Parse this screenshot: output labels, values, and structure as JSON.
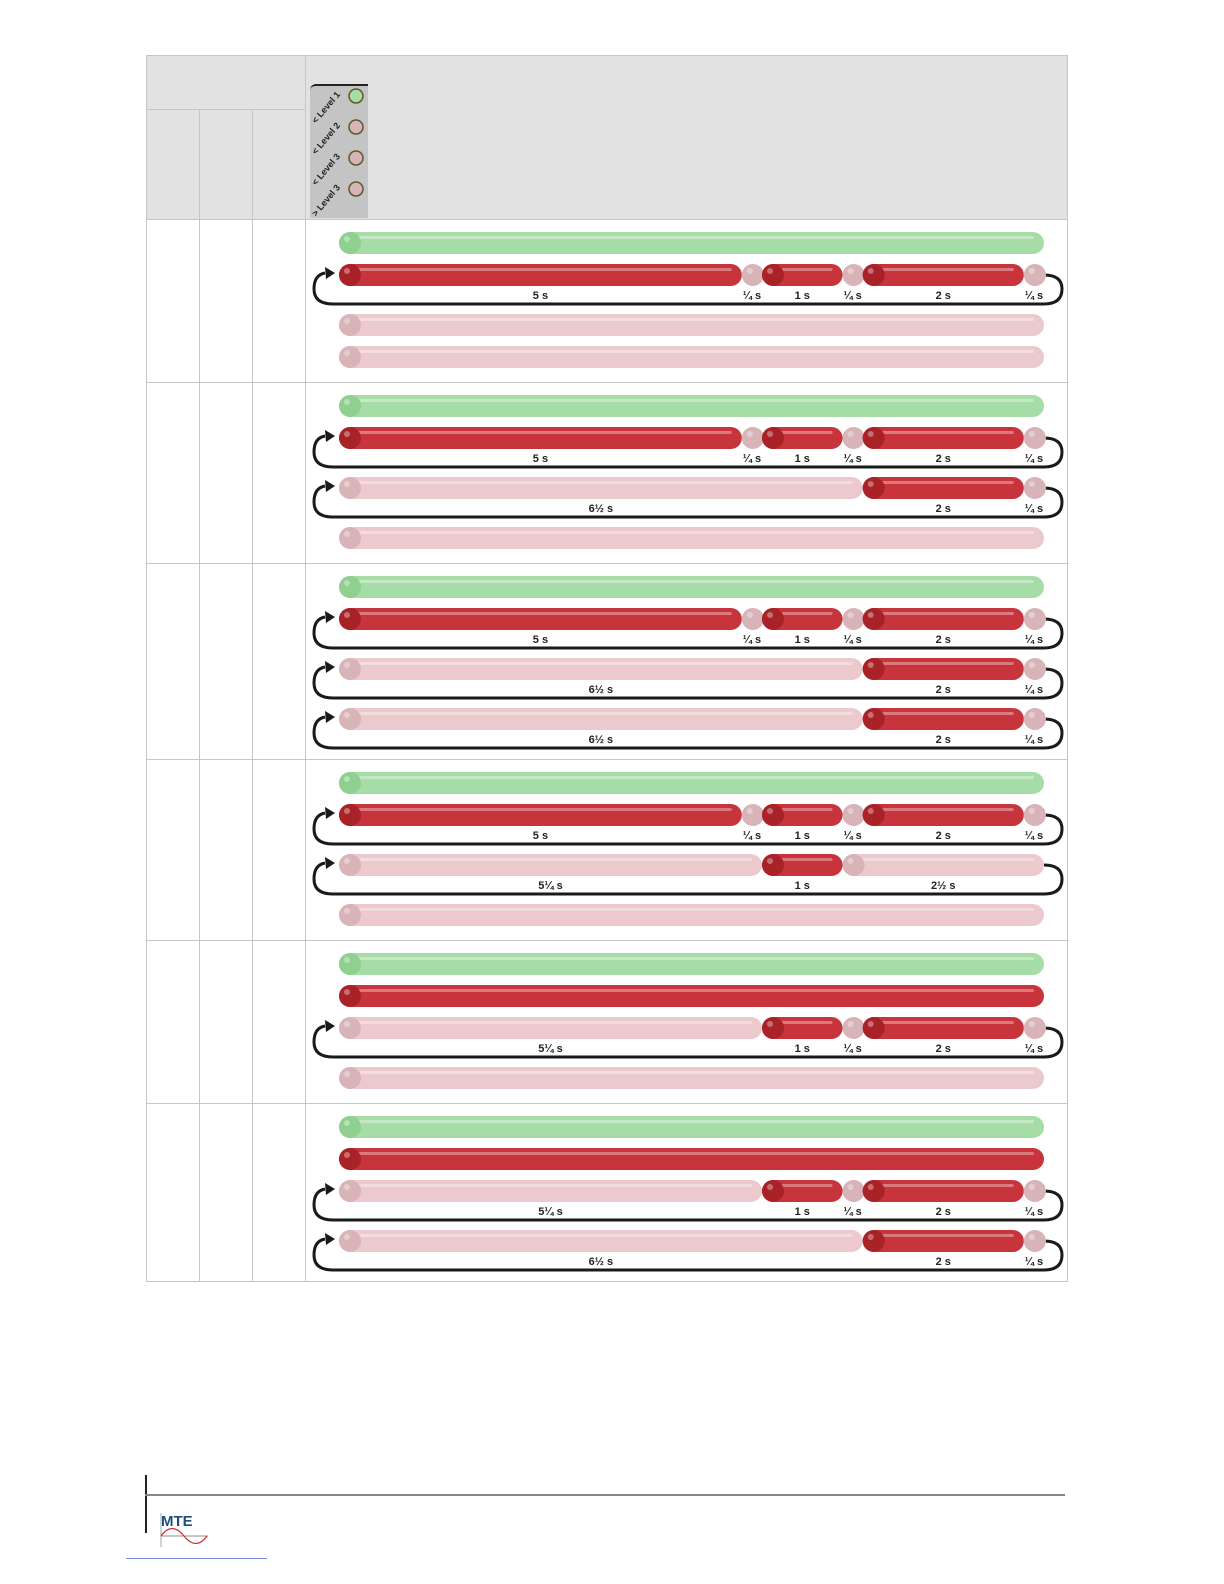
{
  "colors": {
    "green": "#a6dca6",
    "green_ball": "#8fcf8f",
    "red": "#c7343b",
    "red_ball": "#a82228",
    "pink": "#ecc9cc",
    "pink_ball": "#d8b4b8",
    "arrow": "#1a1a1a"
  },
  "led_panel": {
    "labels": [
      "< Level 1",
      "< Level 2",
      "< Level 3",
      "> Level 3"
    ],
    "states": [
      "green",
      "off",
      "off",
      "off"
    ]
  },
  "rows": [
    {
      "tracks": [
        {
          "loop": false,
          "segments": [
            {
              "state": "green",
              "duration": 8.75
            }
          ]
        },
        {
          "loop": true,
          "segments": [
            {
              "state": "on",
              "duration": 5,
              "label": "5 s"
            },
            {
              "state": "off",
              "duration": 0.25,
              "label": "¼ s"
            },
            {
              "state": "on",
              "duration": 1,
              "label": "1 s"
            },
            {
              "state": "off",
              "duration": 0.25,
              "label": "¼ s"
            },
            {
              "state": "on",
              "duration": 2,
              "label": "2 s"
            },
            {
              "state": "off",
              "duration": 0.25,
              "label": "¼ s"
            }
          ]
        },
        {
          "loop": false,
          "segments": [
            {
              "state": "off",
              "duration": 8.75
            }
          ]
        },
        {
          "loop": false,
          "segments": [
            {
              "state": "off",
              "duration": 8.75
            }
          ]
        }
      ]
    },
    {
      "tracks": [
        {
          "loop": false,
          "segments": [
            {
              "state": "green",
              "duration": 8.75
            }
          ]
        },
        {
          "loop": true,
          "segments": [
            {
              "state": "on",
              "duration": 5,
              "label": "5 s"
            },
            {
              "state": "off",
              "duration": 0.25,
              "label": "¼ s"
            },
            {
              "state": "on",
              "duration": 1,
              "label": "1 s"
            },
            {
              "state": "off",
              "duration": 0.25,
              "label": "¼ s"
            },
            {
              "state": "on",
              "duration": 2,
              "label": "2 s"
            },
            {
              "state": "off",
              "duration": 0.25,
              "label": "¼ s"
            }
          ]
        },
        {
          "loop": true,
          "segments": [
            {
              "state": "off",
              "duration": 6.5,
              "label": "6½ s"
            },
            {
              "state": "on",
              "duration": 2,
              "label": "2 s"
            },
            {
              "state": "off",
              "duration": 0.25,
              "label": "¼ s"
            }
          ]
        },
        {
          "loop": false,
          "segments": [
            {
              "state": "off",
              "duration": 8.75
            }
          ]
        }
      ]
    },
    {
      "tracks": [
        {
          "loop": false,
          "segments": [
            {
              "state": "green",
              "duration": 8.75
            }
          ]
        },
        {
          "loop": true,
          "segments": [
            {
              "state": "on",
              "duration": 5,
              "label": "5 s"
            },
            {
              "state": "off",
              "duration": 0.25,
              "label": "¼ s"
            },
            {
              "state": "on",
              "duration": 1,
              "label": "1 s"
            },
            {
              "state": "off",
              "duration": 0.25,
              "label": "¼ s"
            },
            {
              "state": "on",
              "duration": 2,
              "label": "2 s"
            },
            {
              "state": "off",
              "duration": 0.25,
              "label": "¼ s"
            }
          ]
        },
        {
          "loop": true,
          "segments": [
            {
              "state": "off",
              "duration": 6.5,
              "label": "6½ s"
            },
            {
              "state": "on",
              "duration": 2,
              "label": "2 s"
            },
            {
              "state": "off",
              "duration": 0.25,
              "label": "¼ s"
            }
          ]
        },
        {
          "loop": true,
          "segments": [
            {
              "state": "off",
              "duration": 6.5,
              "label": "6½ s"
            },
            {
              "state": "on",
              "duration": 2,
              "label": "2 s"
            },
            {
              "state": "off",
              "duration": 0.25,
              "label": "¼ s"
            }
          ]
        }
      ]
    },
    {
      "tracks": [
        {
          "loop": false,
          "segments": [
            {
              "state": "green",
              "duration": 8.75
            }
          ]
        },
        {
          "loop": true,
          "segments": [
            {
              "state": "on",
              "duration": 5,
              "label": "5 s"
            },
            {
              "state": "off",
              "duration": 0.25,
              "label": "¼ s"
            },
            {
              "state": "on",
              "duration": 1,
              "label": "1 s"
            },
            {
              "state": "off",
              "duration": 0.25,
              "label": "¼ s"
            },
            {
              "state": "on",
              "duration": 2,
              "label": "2 s"
            },
            {
              "state": "off",
              "duration": 0.25,
              "label": "¼ s"
            }
          ]
        },
        {
          "loop": true,
          "segments": [
            {
              "state": "off",
              "duration": 5.25,
              "label": "5¼ s"
            },
            {
              "state": "on",
              "duration": 1,
              "label": "1 s"
            },
            {
              "state": "off",
              "duration": 2.5,
              "label": "2½ s"
            }
          ]
        },
        {
          "loop": false,
          "segments": [
            {
              "state": "off",
              "duration": 8.75
            }
          ]
        }
      ]
    },
    {
      "tracks": [
        {
          "loop": false,
          "segments": [
            {
              "state": "green",
              "duration": 8.75
            }
          ]
        },
        {
          "loop": false,
          "segments": [
            {
              "state": "on",
              "duration": 8.75
            }
          ]
        },
        {
          "loop": true,
          "segments": [
            {
              "state": "off",
              "duration": 5.25,
              "label": "5¼ s"
            },
            {
              "state": "on",
              "duration": 1,
              "label": "1 s"
            },
            {
              "state": "off",
              "duration": 0.25,
              "label": "¼ s"
            },
            {
              "state": "on",
              "duration": 2,
              "label": "2 s"
            },
            {
              "state": "off",
              "duration": 0.25,
              "label": "¼ s"
            }
          ]
        },
        {
          "loop": false,
          "segments": [
            {
              "state": "off",
              "duration": 8.75
            }
          ]
        }
      ]
    },
    {
      "tracks": [
        {
          "loop": false,
          "segments": [
            {
              "state": "green",
              "duration": 8.75
            }
          ]
        },
        {
          "loop": false,
          "segments": [
            {
              "state": "on",
              "duration": 8.75
            }
          ]
        },
        {
          "loop": true,
          "segments": [
            {
              "state": "off",
              "duration": 5.25,
              "label": "5¼ s"
            },
            {
              "state": "on",
              "duration": 1,
              "label": "1 s"
            },
            {
              "state": "off",
              "duration": 0.25,
              "label": "¼ s"
            },
            {
              "state": "on",
              "duration": 2,
              "label": "2 s"
            },
            {
              "state": "off",
              "duration": 0.25,
              "label": "¼ s"
            }
          ]
        },
        {
          "loop": true,
          "segments": [
            {
              "state": "off",
              "duration": 6.5,
              "label": "6½ s"
            },
            {
              "state": "on",
              "duration": 2,
              "label": "2 s"
            },
            {
              "state": "off",
              "duration": 0.25,
              "label": "¼ s"
            }
          ]
        }
      ]
    }
  ],
  "footer": {
    "logo_text": "MTE"
  }
}
